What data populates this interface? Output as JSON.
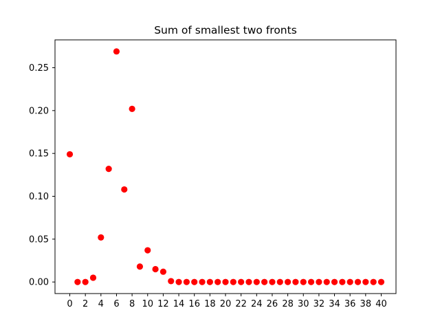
{
  "chart_data": {
    "type": "scatter",
    "title": "Sum of smallest two fronts",
    "xlabel": "",
    "ylabel": "",
    "x": [
      0,
      1,
      2,
      3,
      4,
      5,
      6,
      7,
      8,
      9,
      10,
      11,
      12,
      13,
      14,
      15,
      16,
      17,
      18,
      19,
      20,
      21,
      22,
      23,
      24,
      25,
      26,
      27,
      28,
      29,
      30,
      31,
      32,
      33,
      34,
      35,
      36,
      37,
      38,
      39,
      40
    ],
    "y": [
      0.149,
      0.0,
      0.0,
      0.005,
      0.052,
      0.132,
      0.269,
      0.108,
      0.202,
      0.018,
      0.037,
      0.015,
      0.012,
      0.001,
      0.0,
      0.0,
      0.0,
      0.0,
      0.0,
      0.0,
      0.0,
      0.0,
      0.0,
      0.0,
      0.0,
      0.0,
      0.0,
      0.0,
      0.0,
      0.0,
      0.0,
      0.0,
      0.0,
      0.0,
      0.0,
      0.0,
      0.0,
      0.0,
      0.0,
      0.0,
      0.0
    ],
    "xlim": [
      -1.9,
      41.9
    ],
    "ylim": [
      -0.0135,
      0.2825
    ],
    "xticks": [
      0,
      2,
      4,
      6,
      8,
      10,
      12,
      14,
      16,
      18,
      20,
      22,
      24,
      26,
      28,
      30,
      32,
      34,
      36,
      38,
      40
    ],
    "yticks": [
      0.0,
      0.05,
      0.1,
      0.15,
      0.2,
      0.25
    ],
    "ytick_labels": [
      "0.00",
      "0.05",
      "0.10",
      "0.15",
      "0.20",
      "0.25"
    ],
    "marker_color": "#ff0000",
    "grid": false,
    "legend": false
  }
}
